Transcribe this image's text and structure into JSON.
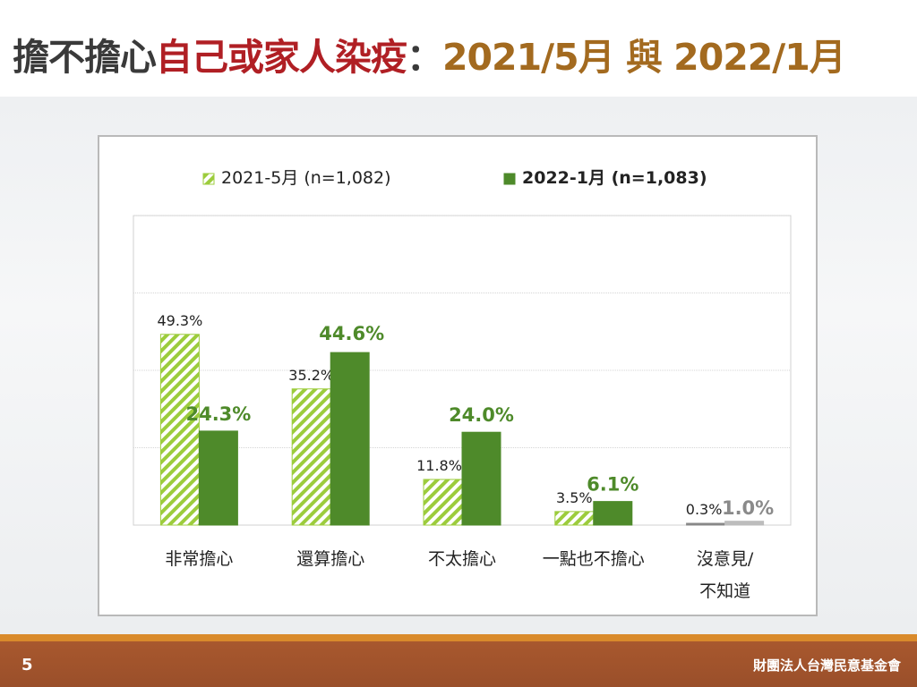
{
  "title": {
    "part1": "擔不擔心",
    "part2": "自己或家人染疫",
    "part3": "：",
    "part4": "2021/5月 與 2022/1月"
  },
  "footer": {
    "page_number": "5",
    "organization": "財團法人台灣民意基金會"
  },
  "colors": {
    "series1": "#9ccc3c",
    "series2": "#4e8a2a",
    "footer": "#a3552c",
    "accent_stripe": "#d98a2b"
  },
  "chart_data": {
    "type": "bar",
    "categories": [
      [
        "非常擔心"
      ],
      [
        "還算擔心"
      ],
      [
        "不太擔心"
      ],
      [
        "一點也不擔心"
      ],
      [
        "沒意見/",
        "不知道"
      ]
    ],
    "series": [
      {
        "name": "2021-5月  (n=1,082)",
        "pattern": "hatched",
        "values": [
          49.3,
          35.2,
          11.8,
          3.5,
          0.3
        ],
        "labels": [
          "49.3%",
          "35.2%",
          "11.8%",
          "3.5%",
          "0.3%"
        ]
      },
      {
        "name": "2022-1月  (n=1,083)",
        "pattern": "solid",
        "values": [
          24.3,
          44.6,
          24.0,
          6.1,
          1.0
        ],
        "labels": [
          "24.3%",
          "44.6%",
          "24.0%",
          "6.1%",
          "1.0%"
        ]
      }
    ],
    "ylim": [
      0,
      80
    ],
    "gridlines": [
      20,
      40,
      60,
      80
    ],
    "legend_position": "top",
    "grid": true
  }
}
